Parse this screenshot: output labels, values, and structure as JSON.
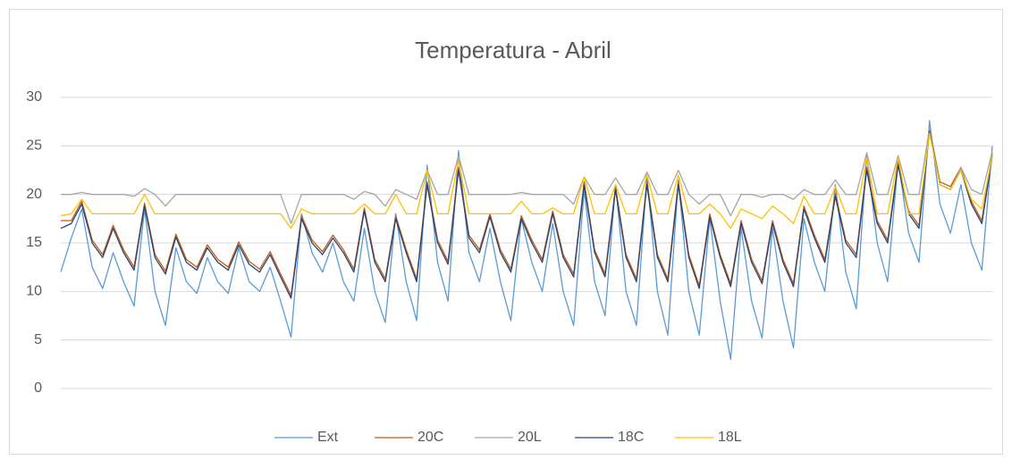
{
  "chart_data": {
    "type": "line",
    "title": "Temperatura - Abril",
    "ylim": [
      0,
      30
    ],
    "yticks": [
      0,
      5,
      10,
      15,
      20,
      25,
      30
    ],
    "grid": true,
    "legend": "bottom",
    "series": [
      {
        "name": "Ext",
        "color": "#5b9bd5",
        "values": [
          12,
          15.5,
          18.5,
          12.5,
          10.3,
          14,
          11,
          8.5,
          18.5,
          10,
          6.5,
          14.5,
          11,
          9.8,
          13.5,
          11,
          9.8,
          14.5,
          11,
          10,
          12.5,
          9,
          5.3,
          18,
          14,
          12,
          15,
          11,
          9,
          16.5,
          10,
          6.8,
          18,
          11,
          7,
          23,
          13,
          9,
          24.5,
          14,
          11,
          16.5,
          11,
          7,
          17.5,
          13,
          10,
          17,
          10,
          6.5,
          20.5,
          11,
          7.5,
          21,
          10,
          6.5,
          22,
          10,
          5.5,
          21.5,
          10,
          5.5,
          17.5,
          9,
          3,
          16.5,
          9,
          5.2,
          16.5,
          9,
          4.2,
          17.5,
          13,
          10,
          21,
          12,
          8.2,
          24,
          15,
          11,
          23.5,
          16,
          13,
          27.6,
          19,
          16,
          21,
          15,
          12.2,
          25
        ]
      },
      {
        "name": "20C",
        "color": "#c55a11",
        "values": [
          17.3,
          17.3,
          19.3,
          15.3,
          13.8,
          16.8,
          14.3,
          12.5,
          19.1,
          13.8,
          12.1,
          15.9,
          13.3,
          12.5,
          14.8,
          13.3,
          12.5,
          15.1,
          13.1,
          12.3,
          14.1,
          11.8,
          9.6,
          17.8,
          15.3,
          14.1,
          15.8,
          14.3,
          12.3,
          18.6,
          13.3,
          11.3,
          17.8,
          14.3,
          11.3,
          21.3,
          15.3,
          13.1,
          22.8,
          15.8,
          14.3,
          18,
          14.3,
          12.3,
          17.8,
          15.3,
          13.3,
          18.3,
          13.8,
          11.8,
          21.3,
          14.3,
          11.8,
          20.8,
          13.8,
          11.3,
          21.3,
          13.8,
          11.3,
          21.3,
          13.8,
          10.6,
          18,
          13.8,
          10.8,
          17.3,
          13.3,
          11.1,
          17.3,
          13.3,
          10.8,
          18.8,
          15.8,
          13.3,
          20.1,
          15.3,
          13.8,
          22.8,
          17.3,
          15.3,
          23.3,
          18.3,
          16.8,
          26.8,
          21.3,
          20.8,
          22.8,
          19.3,
          17.3,
          24.3
        ]
      },
      {
        "name": "20L",
        "color": "#a5a5a5",
        "values": [
          20,
          20,
          20.2,
          20,
          20,
          20,
          20,
          19.8,
          20.6,
          20,
          18.8,
          20,
          20,
          20,
          20,
          20,
          20,
          20,
          20,
          20,
          20,
          20,
          17,
          20,
          20,
          20,
          20,
          20,
          19.5,
          20.3,
          20,
          18.8,
          20.5,
          20,
          19.5,
          22.5,
          20,
          20,
          24,
          20,
          20,
          20,
          20,
          20,
          20.2,
          20,
          20,
          20,
          20,
          19,
          21.8,
          20,
          20,
          21.7,
          20,
          20,
          22.3,
          20,
          20,
          22.5,
          20,
          19,
          20,
          20,
          17.8,
          20,
          20,
          19.7,
          20,
          20,
          19.5,
          20.5,
          20,
          20,
          21.5,
          20,
          20,
          24.3,
          20,
          20,
          24,
          20,
          20,
          26.8,
          21,
          20.5,
          22.8,
          20.5,
          20,
          24.5
        ]
      },
      {
        "name": "18C",
        "color": "#264478",
        "values": [
          16.5,
          17,
          19,
          15,
          13.5,
          16.5,
          14,
          12.2,
          18.8,
          13.5,
          11.8,
          15.6,
          13,
          12.2,
          14.5,
          13,
          12.2,
          14.8,
          12.8,
          12,
          13.8,
          11.5,
          9.3,
          17.5,
          15,
          13.8,
          15.5,
          14,
          12,
          18.3,
          13,
          11,
          17.5,
          14,
          11,
          21,
          15,
          12.8,
          22.5,
          15.5,
          14,
          17.7,
          14,
          12,
          17.5,
          15,
          13,
          18,
          13.5,
          11.5,
          21,
          14,
          11.5,
          20.5,
          13.5,
          11,
          21,
          13.5,
          11,
          21,
          13.5,
          10.3,
          17.7,
          13.5,
          10.5,
          17,
          13,
          10.8,
          17,
          13,
          10.5,
          18.5,
          15.5,
          13,
          19.8,
          15,
          13.5,
          22.5,
          17,
          15,
          23,
          18,
          16.5,
          26.5,
          21,
          20.5,
          22.5,
          19,
          17,
          24
        ]
      },
      {
        "name": "18L",
        "color": "#ffc000",
        "values": [
          17.8,
          18,
          19.5,
          18,
          18,
          18,
          18,
          18,
          20,
          18,
          18,
          18,
          18,
          18,
          18,
          18,
          18,
          18,
          18,
          18,
          18,
          18,
          16.5,
          18.5,
          18,
          18,
          18,
          18,
          18,
          19,
          18,
          18,
          20,
          18,
          18,
          22.5,
          18,
          18,
          23.5,
          18,
          18,
          18,
          18,
          18,
          19.3,
          18,
          18,
          18.6,
          18,
          18,
          21.8,
          18,
          18,
          21,
          18,
          18,
          22,
          18,
          18,
          22,
          18,
          18,
          19,
          18,
          16.5,
          18.5,
          18,
          17.5,
          18.8,
          18,
          17,
          19.8,
          18,
          18,
          20.8,
          18,
          18,
          23.8,
          18,
          18,
          23.8,
          18,
          18,
          26.3,
          21,
          20.5,
          22.5,
          19.5,
          18.5,
          24
        ]
      }
    ]
  }
}
